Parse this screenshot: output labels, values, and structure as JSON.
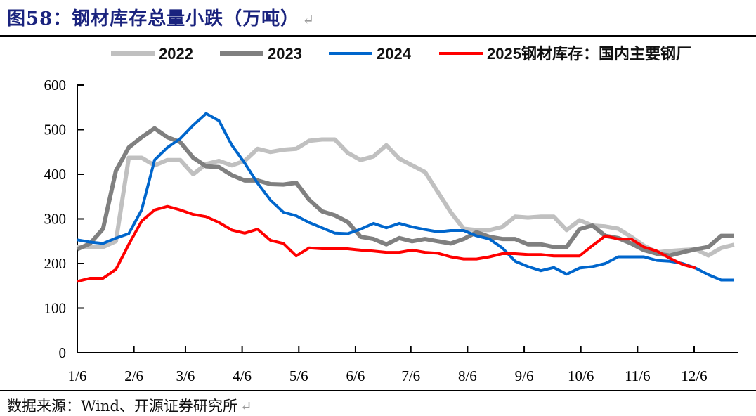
{
  "header": {
    "title": "图58：钢材库存总量小跌（万吨）",
    "return_mark": "↵"
  },
  "footer": {
    "source": "数据来源：Wind、开源证券研究所",
    "return_mark": "↵"
  },
  "chart_data": {
    "type": "line",
    "title": "钢材库存总量小跌（万吨）",
    "xlabel": "",
    "ylabel": "",
    "ylim": [
      0,
      600
    ],
    "yticks": [
      0,
      100,
      200,
      300,
      400,
      500,
      600
    ],
    "x_tick_labels": [
      "1/6",
      "2/6",
      "3/6",
      "4/6",
      "5/6",
      "6/6",
      "7/6",
      "8/6",
      "9/6",
      "10/6",
      "11/6",
      "12/6"
    ],
    "x_tick_week_index": [
      0,
      4.4,
      8.4,
      12.8,
      17.2,
      21.6,
      25.9,
      30.3,
      34.7,
      39.1,
      43.5,
      47.9
    ],
    "x_range_weeks": [
      0,
      51.3
    ],
    "grid": false,
    "legend_position": "top",
    "series": [
      {
        "name": "2022",
        "color": "#c0c0c0",
        "values": [
          237,
          237,
          237,
          250,
          437,
          437,
          420,
          432,
          432,
          400,
          423,
          430,
          420,
          430,
          457,
          450,
          455,
          457,
          475,
          478,
          478,
          448,
          432,
          440,
          465,
          435,
          420,
          405,
          360,
          315,
          278,
          275,
          275,
          282,
          305,
          303,
          305,
          305,
          275,
          297,
          285,
          283,
          278,
          260,
          240,
          225,
          228,
          230,
          232,
          218,
          235,
          242
        ]
      },
      {
        "name": "2023",
        "color": "#808080",
        "values": [
          232,
          245,
          278,
          408,
          460,
          483,
          503,
          483,
          472,
          437,
          418,
          416,
          398,
          386,
          386,
          378,
          377,
          381,
          343,
          317,
          308,
          293,
          260,
          255,
          243,
          257,
          250,
          255,
          250,
          245,
          255,
          270,
          260,
          255,
          255,
          243,
          243,
          237,
          237,
          277,
          285,
          262,
          257,
          245,
          230,
          222,
          218,
          225,
          232,
          237,
          262,
          262
        ]
      },
      {
        "name": "2024",
        "color": "#0066cc",
        "values": [
          253,
          248,
          245,
          257,
          267,
          320,
          432,
          460,
          480,
          510,
          536,
          520,
          465,
          425,
          380,
          342,
          315,
          307,
          292,
          280,
          268,
          267,
          277,
          290,
          280,
          290,
          282,
          276,
          271,
          274,
          274,
          262,
          255,
          235,
          205,
          193,
          184,
          191,
          176,
          190,
          193,
          200,
          215,
          215,
          215,
          207,
          205,
          200,
          190,
          175,
          163,
          163
        ]
      },
      {
        "name": "2025钢材库存：国内主要钢厂",
        "color": "#ff0000",
        "values": [
          160,
          167,
          167,
          187,
          243,
          295,
          320,
          328,
          320,
          310,
          305,
          292,
          275,
          268,
          277,
          252,
          245,
          217,
          235,
          233,
          233,
          233,
          230,
          228,
          225,
          225,
          230,
          225,
          223,
          215,
          210,
          210,
          215,
          222,
          222,
          220,
          220,
          217,
          217,
          217,
          240,
          262,
          255,
          255,
          237,
          228,
          212,
          198,
          190
        ]
      }
    ]
  }
}
